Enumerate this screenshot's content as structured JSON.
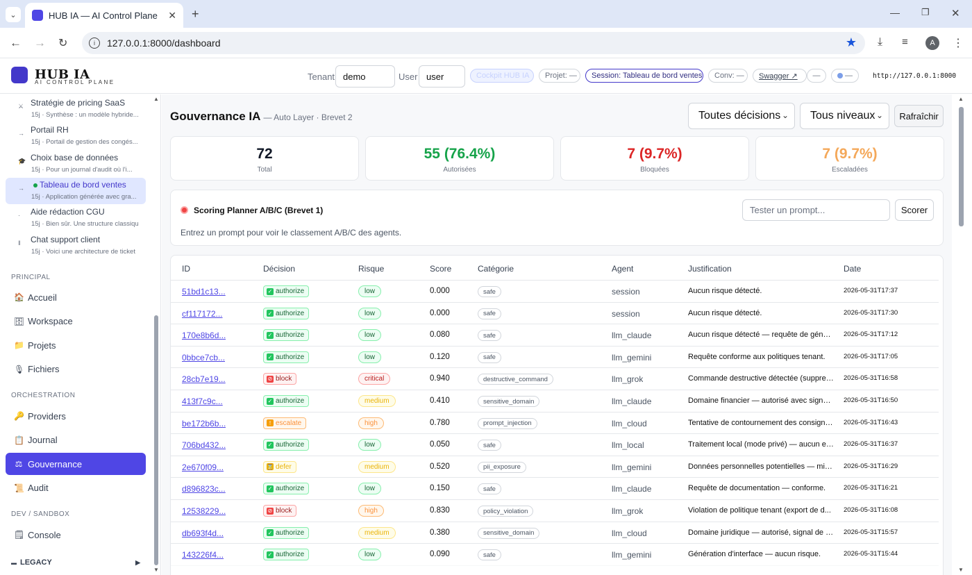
{
  "browser": {
    "tab_title": "HUB IA — AI Control Plane",
    "url": "127.0.0.1:8000/dashboard",
    "profile_initial": "A"
  },
  "header": {
    "brand": "HUB IA",
    "brand_sub": "AI CONTROL PLANE",
    "tenant_label": "Tenant",
    "tenant_value": "demo",
    "user_label": "User",
    "user_value": "user",
    "cockpit": "Cockpit HUB IA",
    "project": "Projet: —",
    "session": "Session: Tableau de bord ventes",
    "conv": "Conv: —",
    "swagger": "Swagger ↗",
    "dash": "—",
    "status": "—",
    "endpoint": "http://127.0.0.1:8000"
  },
  "sidebar": {
    "conversations": [
      {
        "title": "Stratégie de pricing SaaS",
        "sub": "15j · Synthèse : un modèle hybride...",
        "icon": "⚔"
      },
      {
        "title": "Portail RH",
        "sub": "15j · Portail de gestion des congés...",
        "icon": "→"
      },
      {
        "title": "Choix base de données",
        "sub": "15j · Pour un journal d'audit où l'i...",
        "icon": "🎓"
      },
      {
        "title": "Tableau de bord ventes",
        "sub": "15j · Application générée avec gra...",
        "icon": "→"
      },
      {
        "title": "Aide rédaction CGU",
        "sub": "15j · Bien sûr. Une structure classiqu",
        "icon": "·"
      },
      {
        "title": "Chat support client",
        "sub": "15j · Voici une architecture de ticket",
        "icon": "‖"
      }
    ],
    "principal_label": "PRINCIPAL",
    "principal": [
      {
        "label": "Accueil",
        "icon": "🏠"
      },
      {
        "label": "Workspace",
        "icon": "🗄"
      },
      {
        "label": "Projets",
        "icon": "📁"
      },
      {
        "label": "Fichiers",
        "icon": "🎙"
      }
    ],
    "orchestration_label": "ORCHESTRATION",
    "orchestration": [
      {
        "label": "Providers",
        "icon": "🔑"
      },
      {
        "label": "Journal",
        "icon": "📋"
      },
      {
        "label": "Gouvernance",
        "icon": "⚖"
      },
      {
        "label": "Audit",
        "icon": "📜"
      }
    ],
    "dev_label": "DEV / SANDBOX",
    "dev": [
      {
        "label": "Console",
        "icon": "🗒"
      }
    ],
    "legacy": "LEGACY"
  },
  "main": {
    "title": "Gouvernance IA",
    "subtitle": "— Auto Layer · Brevet 2",
    "filter_decision": "Toutes décisions",
    "filter_level": "Tous niveaux",
    "refresh": "Rafraîchir",
    "stats": [
      {
        "value": "72",
        "label": "Total",
        "color": "#111827"
      },
      {
        "value": "55 (76.4%)",
        "label": "Autorisées",
        "color": "#16a34a"
      },
      {
        "value": "7 (9.7%)",
        "label": "Bloquées",
        "color": "#dc2626"
      },
      {
        "value": "7 (9.7%)",
        "label": "Escaladées",
        "color": "#f4a85a"
      }
    ],
    "scoring": {
      "title": "Scoring Planner A/B/C (Brevet 1)",
      "placeholder": "Tester un prompt...",
      "button": "Scorer",
      "hint": "Entrez un prompt pour voir le classement A/B/C des agents."
    },
    "table": {
      "headers": [
        "ID",
        "Décision",
        "Risque",
        "Score",
        "Catégorie",
        "Agent",
        "Justification",
        "Date"
      ],
      "rows": [
        {
          "id": "51bd1c13...",
          "decision": "authorize",
          "risk": "low",
          "score": "0.000",
          "category": "safe",
          "agent": "session",
          "justification": "Aucun risque détecté.",
          "date": "2026-05-31T17:37"
        },
        {
          "id": "cf117172...",
          "decision": "authorize",
          "risk": "low",
          "score": "0.000",
          "category": "safe",
          "agent": "session",
          "justification": "Aucun risque détecté.",
          "date": "2026-05-31T17:30"
        },
        {
          "id": "170e8b6d...",
          "decision": "authorize",
          "risk": "low",
          "score": "0.080",
          "category": "safe",
          "agent": "llm_claude",
          "justification": "Aucun risque détecté — requête de génér...",
          "date": "2026-05-31T17:12"
        },
        {
          "id": "0bbce7cb...",
          "decision": "authorize",
          "risk": "low",
          "score": "0.120",
          "category": "safe",
          "agent": "llm_gemini",
          "justification": "Requête conforme aux politiques tenant.",
          "date": "2026-05-31T17:05"
        },
        {
          "id": "28cb7e19...",
          "decision": "block",
          "risk": "critical",
          "score": "0.940",
          "category": "destructive_command",
          "agent": "llm_grok",
          "justification": "Commande destructive détectée (suppress...",
          "date": "2026-05-31T16:58"
        },
        {
          "id": "413f7c9c...",
          "decision": "authorize",
          "risk": "medium",
          "score": "0.410",
          "category": "sensitive_domain",
          "agent": "llm_claude",
          "justification": "Domaine financier — autorisé avec signal j...",
          "date": "2026-05-31T16:50"
        },
        {
          "id": "be172b6b...",
          "decision": "escalate",
          "risk": "high",
          "score": "0.780",
          "category": "prompt_injection",
          "agent": "llm_cloud",
          "justification": "Tentative de contournement des consigne...",
          "date": "2026-05-31T16:43"
        },
        {
          "id": "706bd432...",
          "decision": "authorize",
          "risk": "low",
          "score": "0.050",
          "category": "safe",
          "agent": "llm_local",
          "justification": "Traitement local (mode privé) — aucun en...",
          "date": "2026-05-31T16:37"
        },
        {
          "id": "2e670f09...",
          "decision": "defer",
          "risk": "medium",
          "score": "0.520",
          "category": "pii_exposure",
          "agent": "llm_gemini",
          "justification": "Données personnelles potentielles — mis ...",
          "date": "2026-05-31T16:29"
        },
        {
          "id": "d896823c...",
          "decision": "authorize",
          "risk": "low",
          "score": "0.150",
          "category": "safe",
          "agent": "llm_claude",
          "justification": "Requête de documentation — conforme.",
          "date": "2026-05-31T16:21"
        },
        {
          "id": "12538229...",
          "decision": "block",
          "risk": "high",
          "score": "0.830",
          "category": "policy_violation",
          "agent": "llm_grok",
          "justification": "Violation de politique tenant (export de d...",
          "date": "2026-05-31T16:08"
        },
        {
          "id": "db693f4d...",
          "decision": "authorize",
          "risk": "medium",
          "score": "0.380",
          "category": "sensitive_domain",
          "agent": "llm_cloud",
          "justification": "Domaine juridique — autorisé, signal de p...",
          "date": "2026-05-31T15:57"
        },
        {
          "id": "143226f4...",
          "decision": "authorize",
          "risk": "low",
          "score": "0.090",
          "category": "safe",
          "agent": "llm_gemini",
          "justification": "Génération d'interface — aucun risque.",
          "date": "2026-05-31T15:44"
        }
      ]
    }
  }
}
